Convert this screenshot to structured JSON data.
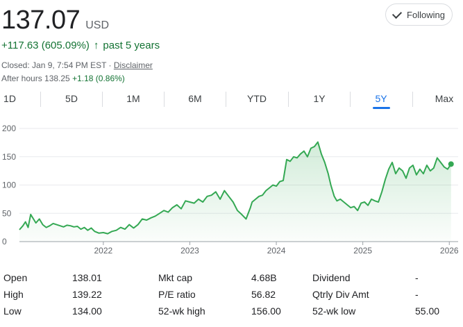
{
  "header": {
    "price": "137.07",
    "currency": "USD",
    "follow_label": "Following",
    "change": "+117.63 (605.09%)",
    "change_arrow": "↑",
    "change_period": "past 5 years",
    "closed_text": "Closed: Jan 9, 7:54 PM EST · ",
    "disclaimer": "Disclaimer",
    "after_hours_label": "After hours 138.25",
    "after_hours_change": "+1.18 (0.86%)"
  },
  "tabs": [
    "1D",
    "5D",
    "1M",
    "6M",
    "YTD",
    "1Y",
    "5Y",
    "Max"
  ],
  "active_tab": "5Y",
  "colors": {
    "line": "#34a853",
    "fill": "#e6f4ea",
    "positive": "#137333",
    "accent": "#1a73e8"
  },
  "stats": {
    "rows": [
      [
        {
          "label": "Open",
          "value": "138.01"
        },
        {
          "label": "Mkt cap",
          "value": "4.68B"
        },
        {
          "label": "Dividend",
          "value": "-"
        }
      ],
      [
        {
          "label": "High",
          "value": "139.22"
        },
        {
          "label": "P/E ratio",
          "value": "56.82"
        },
        {
          "label": "Qtrly Div Amt",
          "value": "-"
        }
      ],
      [
        {
          "label": "Low",
          "value": "134.00"
        },
        {
          "label": "52-wk high",
          "value": "156.00"
        },
        {
          "label": "52-wk low",
          "value": "55.00"
        }
      ]
    ]
  },
  "chart_data": {
    "type": "area",
    "title": "",
    "xlabel": "",
    "ylabel": "",
    "ylim": [
      0,
      200
    ],
    "y_ticks": [
      0,
      50,
      100,
      150,
      200
    ],
    "x_ticks": [
      "2022",
      "2023",
      "2024",
      "2025",
      "2026"
    ],
    "x_tick_dates": [
      2022.0,
      2023.0,
      2024.0,
      2025.0,
      2026.0
    ],
    "xlim": [
      2021.03,
      2026.03
    ],
    "grid": true,
    "legend": "none",
    "series": [
      {
        "x": [
          2021.03,
          2021.07,
          2021.1,
          2021.13,
          2021.16,
          2021.2,
          2021.22,
          2021.26,
          2021.3,
          2021.34,
          2021.38,
          2021.42,
          2021.46,
          2021.5,
          2021.54,
          2021.58,
          2021.62,
          2021.66,
          2021.7,
          2021.74,
          2021.78,
          2021.82,
          2021.86,
          2021.9,
          2021.95,
          2022.0,
          2022.05,
          2022.1,
          2022.15,
          2022.2,
          2022.25,
          2022.3,
          2022.35,
          2022.4,
          2022.45,
          2022.5,
          2022.55,
          2022.6,
          2022.65,
          2022.7,
          2022.75,
          2022.8,
          2022.85,
          2022.9,
          2022.95,
          2023.0,
          2023.05,
          2023.1,
          2023.15,
          2023.2,
          2023.25,
          2023.3,
          2023.35,
          2023.4,
          2023.45,
          2023.5,
          2023.55,
          2023.6,
          2023.65,
          2023.7,
          2023.72,
          2023.76,
          2023.8,
          2023.84,
          2023.88,
          2023.92,
          2023.96,
          2024.0,
          2024.04,
          2024.08,
          2024.12,
          2024.16,
          2024.2,
          2024.24,
          2024.28,
          2024.32,
          2024.36,
          2024.4,
          2024.44,
          2024.48,
          2024.52,
          2024.56,
          2024.6,
          2024.63,
          2024.67,
          2024.7,
          2024.74,
          2024.78,
          2024.82,
          2024.86,
          2024.9,
          2024.94,
          2024.98,
          2025.02,
          2025.06,
          2025.1,
          2025.14,
          2025.18,
          2025.22,
          2025.26,
          2025.3,
          2025.34,
          2025.38,
          2025.42,
          2025.46,
          2025.5,
          2025.54,
          2025.58,
          2025.62,
          2025.66,
          2025.7,
          2025.74,
          2025.78,
          2025.82,
          2025.86,
          2025.9,
          2025.94,
          2025.98,
          2026.02
        ],
        "y": [
          21,
          28,
          35,
          25,
          48,
          38,
          33,
          40,
          30,
          25,
          28,
          32,
          30,
          28,
          26,
          29,
          28,
          26,
          27,
          22,
          25,
          20,
          24,
          18,
          15,
          16,
          14,
          18,
          20,
          25,
          22,
          30,
          24,
          30,
          40,
          38,
          42,
          45,
          50,
          55,
          52,
          60,
          65,
          58,
          72,
          70,
          68,
          75,
          70,
          80,
          82,
          88,
          75,
          90,
          80,
          70,
          55,
          48,
          40,
          60,
          70,
          75,
          80,
          82,
          90,
          95,
          100,
          98,
          106,
          108,
          145,
          142,
          150,
          148,
          155,
          160,
          150,
          165,
          168,
          176,
          155,
          140,
          120,
          100,
          80,
          72,
          75,
          70,
          65,
          60,
          62,
          55,
          68,
          70,
          64,
          75,
          72,
          70,
          88,
          110,
          128,
          140,
          120,
          130,
          125,
          112,
          130,
          135,
          118,
          128,
          120,
          135,
          125,
          130,
          148,
          140,
          132,
          128,
          137
        ]
      }
    ]
  }
}
